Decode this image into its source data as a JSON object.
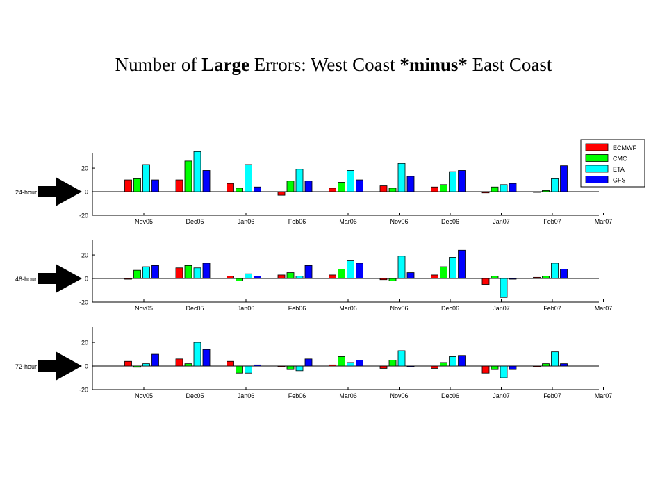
{
  "title": {
    "part1": "Number of ",
    "bold1": "Large",
    "part2": " Errors: West Coast ",
    "bold2": "*minus*",
    "part3": " East Coast"
  },
  "chart_data": [
    {
      "type": "bar",
      "side_label": "24-hour",
      "categories": [
        "Nov05",
        "Dec05",
        "Jan06",
        "Feb06",
        "Mar06",
        "Nov06",
        "Dec06",
        "Jan07",
        "Feb07",
        "Mar07"
      ],
      "ylim": [
        -20,
        33
      ],
      "yticks": [
        -20,
        0,
        20
      ],
      "series": [
        {
          "name": "ECMWF",
          "color": "#ff0000",
          "values": [
            10,
            10,
            7,
            -3,
            3,
            5,
            4,
            -1,
            0,
            null
          ]
        },
        {
          "name": "CMC",
          "color": "#00ff00",
          "values": [
            11,
            26,
            3,
            9,
            8,
            3,
            6,
            4,
            1,
            null
          ]
        },
        {
          "name": "ETA",
          "color": "#00ffff",
          "values": [
            23,
            34,
            23,
            19,
            18,
            24,
            17,
            6,
            11,
            null
          ]
        },
        {
          "name": "GFS",
          "color": "#0000ff",
          "values": [
            10,
            18,
            4,
            9,
            10,
            13,
            18,
            7,
            22,
            null
          ]
        }
      ]
    },
    {
      "type": "bar",
      "side_label": "48-hour",
      "categories": [
        "Nov05",
        "Dec05",
        "Jan06",
        "Feb06",
        "Mar06",
        "Nov06",
        "Dec06",
        "Jan07",
        "Feb07",
        "Mar07"
      ],
      "ylim": [
        -20,
        33
      ],
      "yticks": [
        -20,
        0,
        20
      ],
      "series": [
        {
          "name": "ECMWF",
          "color": "#ff0000",
          "values": [
            0,
            9,
            2,
            3,
            3,
            -1,
            3,
            -5,
            1,
            null
          ]
        },
        {
          "name": "CMC",
          "color": "#00ff00",
          "values": [
            7,
            11,
            -2,
            5,
            8,
            -2,
            10,
            2,
            2,
            null
          ]
        },
        {
          "name": "ETA",
          "color": "#00ffff",
          "values": [
            10,
            9,
            4,
            2,
            15,
            19,
            18,
            -16,
            13,
            null
          ]
        },
        {
          "name": "GFS",
          "color": "#0000ff",
          "values": [
            11,
            13,
            2,
            11,
            13,
            5,
            24,
            0,
            8,
            null
          ]
        }
      ]
    },
    {
      "type": "bar",
      "side_label": "72-hour",
      "categories": [
        "Nov05",
        "Dec05",
        "Jan06",
        "Feb06",
        "Mar06",
        "Nov06",
        "Dec06",
        "Jan07",
        "Feb07",
        "Mar07"
      ],
      "ylim": [
        -20,
        33
      ],
      "yticks": [
        -20,
        0,
        20
      ],
      "series": [
        {
          "name": "ECMWF",
          "color": "#ff0000",
          "values": [
            4,
            6,
            4,
            0,
            1,
            -2,
            -2,
            -6,
            0,
            null
          ]
        },
        {
          "name": "CMC",
          "color": "#00ff00",
          "values": [
            -1,
            2,
            -6,
            -3,
            8,
            5,
            3,
            -3,
            2,
            null
          ]
        },
        {
          "name": "ETA",
          "color": "#00ffff",
          "values": [
            2,
            20,
            -6,
            -4,
            3,
            13,
            8,
            -10,
            12,
            null
          ]
        },
        {
          "name": "GFS",
          "color": "#0000ff",
          "values": [
            10,
            14,
            1,
            6,
            5,
            0,
            9,
            -3,
            2,
            null
          ]
        }
      ]
    }
  ],
  "legend": {
    "placement": "top-right",
    "items": [
      "ECMWF",
      "CMC",
      "ETA",
      "GFS"
    ],
    "colors": [
      "#ff0000",
      "#00ff00",
      "#00ffff",
      "#0000ff"
    ]
  }
}
